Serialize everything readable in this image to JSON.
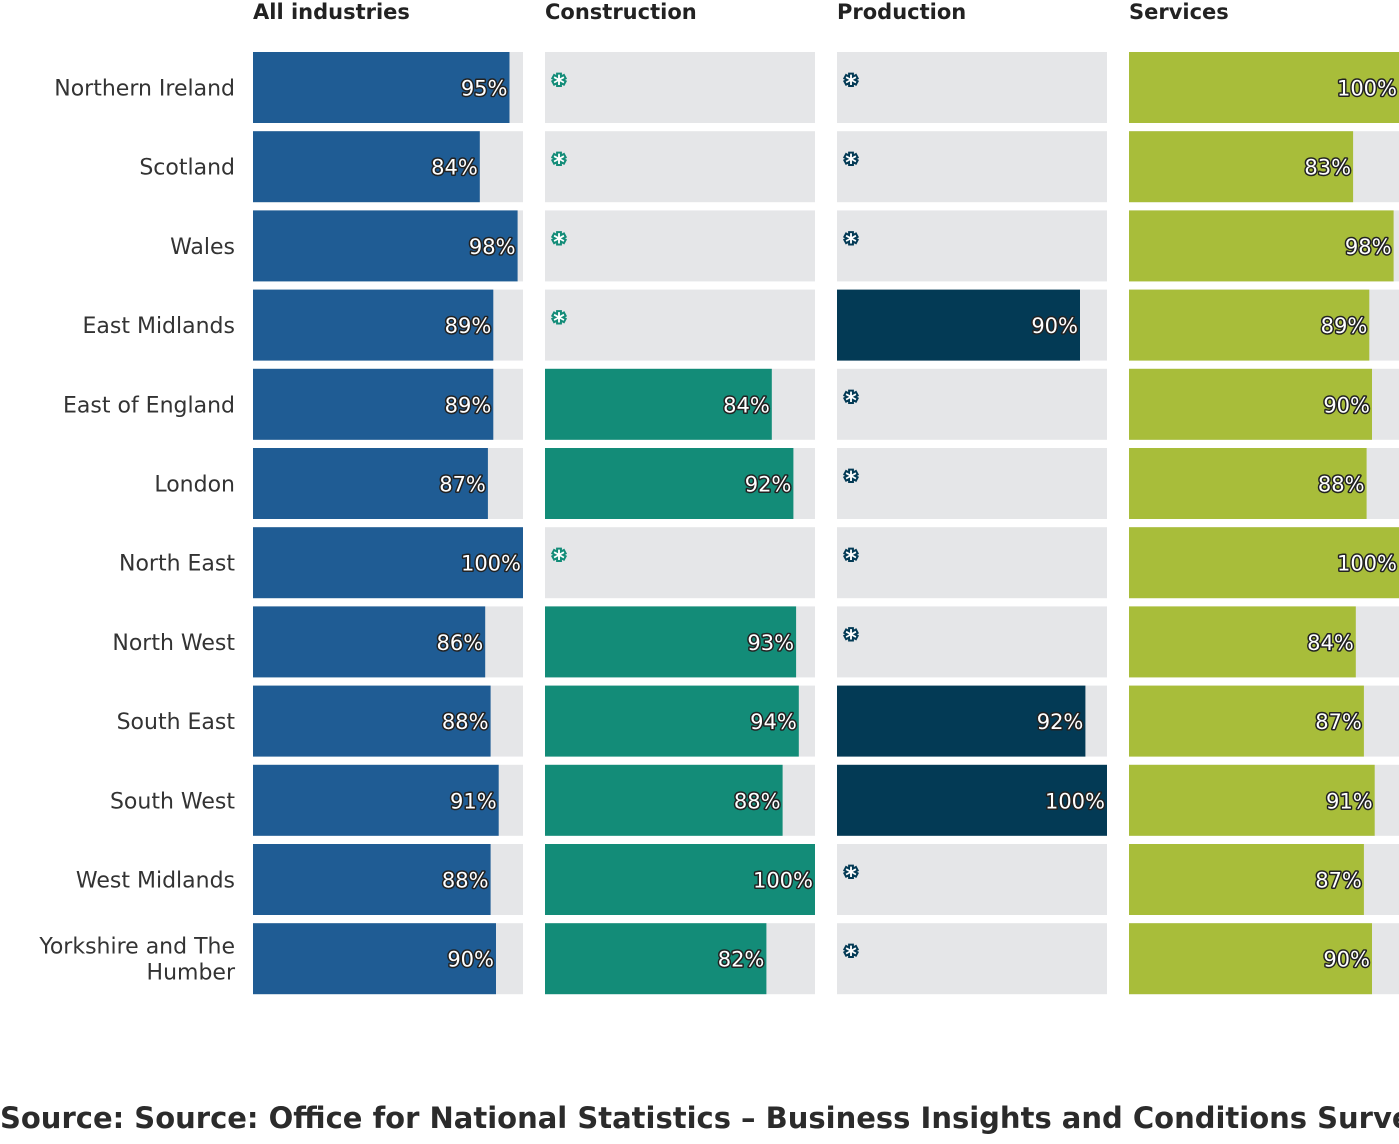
{
  "chart_data": {
    "type": "bar",
    "orientation": "horizontal",
    "layout": "small-multiples",
    "categories": [
      "Northern Ireland",
      "Scotland",
      "Wales",
      "East Midlands",
      "East of England",
      "London",
      "North East",
      "North West",
      "South East",
      "South West",
      "West Midlands",
      "Yorkshire and The Humber"
    ],
    "xlim": [
      0,
      100
    ],
    "unit": "%",
    "suppressed_marker": "*",
    "series": [
      {
        "name": "All industries",
        "color": "#1f5c94",
        "values": [
          95,
          84,
          98,
          89,
          89,
          87,
          100,
          86,
          88,
          91,
          88,
          90
        ]
      },
      {
        "name": "Construction",
        "color": "#138c78",
        "values": [
          null,
          null,
          null,
          null,
          84,
          92,
          null,
          93,
          94,
          88,
          100,
          82
        ]
      },
      {
        "name": "Production",
        "color": "#033a55",
        "values": [
          null,
          null,
          null,
          90,
          null,
          null,
          null,
          null,
          92,
          100,
          null,
          null
        ]
      },
      {
        "name": "Services",
        "color": "#a8bd3a",
        "values": [
          100,
          83,
          98,
          89,
          90,
          88,
          100,
          84,
          87,
          91,
          87,
          90
        ]
      }
    ],
    "track_color": "#e5e6e8",
    "grid": false,
    "legend": "none"
  },
  "source": "Source: Source: Office for National Statistics – Business Insights and Conditions Survey"
}
